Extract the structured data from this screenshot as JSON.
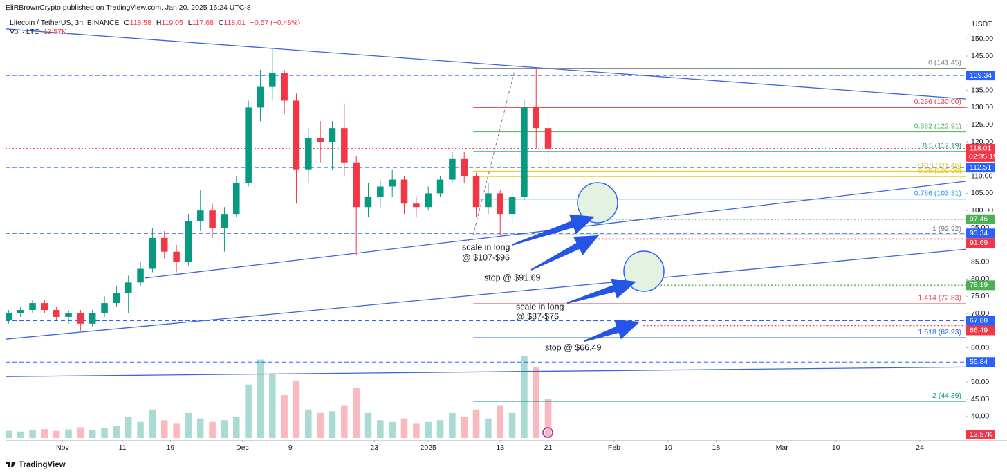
{
  "header": {
    "publisher": "EliRBrownCrypto published on TradingView.com, Jan 20, 2025 16:24 UTC-8",
    "symbol": "Litecoin / TetherUS, 3h, BINANCE",
    "ohlc": [
      [
        "O",
        "118.58"
      ],
      [
        "H",
        "119.05"
      ],
      [
        "L",
        "117.68"
      ],
      [
        "C",
        "118.01"
      ]
    ],
    "change": "−0.57 (−0.48%)",
    "volume_label": "Vol · LTC",
    "volume_value": "13.57K"
  },
  "chart_data": {
    "type": "candlestick",
    "x": [
      -9,
      -7,
      -5,
      -3,
      -1,
      1,
      3,
      5,
      7,
      9,
      11,
      13,
      15,
      17,
      19,
      21,
      23,
      25,
      27,
      29,
      31,
      33,
      35,
      37,
      39,
      41,
      43,
      45,
      47,
      49,
      51,
      53,
      55,
      57,
      59,
      61,
      63,
      65,
      67,
      69,
      71,
      73,
      75,
      77,
      79,
      81
    ],
    "open": [
      68,
      70,
      71,
      73,
      71,
      69,
      70,
      67,
      70,
      73,
      76,
      79,
      83,
      92,
      88,
      85,
      97,
      100,
      95,
      99,
      108,
      130,
      136,
      140,
      132,
      112,
      121,
      120,
      124,
      114,
      101,
      104,
      107,
      109,
      102,
      101,
      105,
      109,
      115,
      110,
      101,
      105,
      99,
      104,
      130,
      124
    ],
    "high": [
      71,
      72,
      74,
      74,
      72,
      71,
      71,
      71,
      75,
      78,
      81,
      85,
      95,
      94,
      90,
      99,
      106,
      102,
      101,
      110,
      132,
      141,
      147,
      141,
      134,
      124,
      126,
      126,
      131,
      116,
      108,
      109,
      112,
      110,
      104,
      107,
      110,
      117,
      117,
      111,
      108,
      106,
      106,
      132,
      141.45,
      127
    ],
    "low": [
      67,
      69,
      70,
      70,
      68,
      67,
      65,
      66,
      69,
      72,
      70,
      78,
      82,
      86,
      82,
      84,
      94,
      92,
      88,
      98,
      107,
      126,
      132,
      128,
      102,
      108,
      114,
      112,
      110,
      87,
      98,
      101,
      104,
      99,
      98,
      100,
      104,
      108,
      108,
      98,
      99,
      93,
      96,
      103,
      118,
      112
    ],
    "close": [
      70,
      71,
      73,
      71,
      69,
      70,
      67,
      70,
      73,
      76,
      79,
      83,
      92,
      88,
      85,
      97,
      100,
      95,
      99,
      108,
      130,
      136,
      140,
      132,
      112,
      121,
      120,
      124,
      114,
      101,
      104,
      107,
      109,
      102,
      101,
      105,
      109,
      115,
      110,
      101,
      105,
      99,
      104,
      130,
      124,
      118.01
    ],
    "volume": [
      20,
      18,
      22,
      25,
      20,
      24,
      30,
      22,
      28,
      35,
      60,
      45,
      80,
      50,
      40,
      70,
      55,
      45,
      50,
      60,
      150,
      220,
      180,
      120,
      160,
      80,
      70,
      75,
      90,
      140,
      70,
      50,
      45,
      55,
      40,
      45,
      50,
      70,
      60,
      80,
      55,
      90,
      70,
      230,
      200,
      110
    ],
    "volume_ylim": [
      0,
      320
    ],
    "volume_tag": "13.57K",
    "up_color": "#089981",
    "down_color": "#f23645",
    "currency": "USDT",
    "xlim": [
      -9.5,
      150.6
    ],
    "xticks": [
      {
        "value": 0,
        "label": "Nov"
      },
      {
        "value": 10,
        "label": "11"
      },
      {
        "value": 18,
        "label": "19"
      },
      {
        "value": 30,
        "label": "Dec"
      },
      {
        "value": 38,
        "label": "9"
      },
      {
        "value": 52,
        "label": "23"
      },
      {
        "value": 61,
        "label": "2025"
      },
      {
        "value": 73,
        "label": "13"
      },
      {
        "value": 81,
        "label": "21"
      },
      {
        "value": 92,
        "label": "Feb"
      },
      {
        "value": 101,
        "label": "10"
      },
      {
        "value": 109,
        "label": "18"
      },
      {
        "value": 120,
        "label": "Mar"
      },
      {
        "value": 129,
        "label": "10"
      },
      {
        "value": 143,
        "label": "24"
      }
    ],
    "ylim": [
      33.3,
      157.3
    ],
    "yticks": [
      {
        "value": 150,
        "label": "150.00"
      },
      {
        "value": 145,
        "label": "145.00"
      },
      {
        "value": 135,
        "label": "135.00"
      },
      {
        "value": 130,
        "label": "130.00"
      },
      {
        "value": 125,
        "label": "125.00"
      },
      {
        "value": 120,
        "label": "120.00"
      },
      {
        "value": 110,
        "label": "110.00"
      },
      {
        "value": 105,
        "label": "105.00"
      },
      {
        "value": 100,
        "label": "100.00"
      },
      {
        "value": 95,
        "label": "95.00"
      },
      {
        "value": 85,
        "label": "85.00"
      },
      {
        "value": 80,
        "label": "80.00"
      },
      {
        "value": 75,
        "label": "75.00"
      },
      {
        "value": 70,
        "label": "70.00"
      },
      {
        "value": 60,
        "label": "60.00"
      },
      {
        "value": 50,
        "label": "50.00"
      },
      {
        "value": 45,
        "label": "45.00"
      },
      {
        "value": 40,
        "label": "40.00"
      }
    ],
    "price_lines": [
      {
        "value": 139.34,
        "color": "#2962ff",
        "style": "dashed"
      },
      {
        "value": 118.01,
        "color": "#f23645",
        "style": "dotted",
        "countdown": "02:35:19"
      },
      {
        "value": 112.51,
        "color": "#2962ff",
        "style": "dashed"
      },
      {
        "value": 97.46,
        "color": "#4caf50",
        "style": "dotted",
        "start": 88.2
      },
      {
        "value": 93.34,
        "color": "#2962ff",
        "style": "dashed"
      },
      {
        "value": 91.69,
        "color": "#f23645",
        "style": "dotted",
        "start": 88.8
      },
      {
        "value": 78.19,
        "color": "#4caf50",
        "style": "dotted",
        "start": 96.3
      },
      {
        "value": 67.88,
        "color": "#2962ff",
        "style": "dashed"
      },
      {
        "value": 66.49,
        "color": "#f23645",
        "style": "dotted",
        "start": 96.9
      },
      {
        "value": 55.84,
        "color": "#2962ff",
        "style": "dashed"
      }
    ],
    "fib": {
      "start": 68.5,
      "end": 75.5,
      "levels": [
        {
          "label": "0 (141.45)",
          "value": 141.45,
          "color": "#787b86"
        },
        {
          "label": "0.236 (130.00)",
          "value": 130.0,
          "color": "#f23645"
        },
        {
          "label": "0.382 (122.91)",
          "value": 122.91,
          "color": "#4caf50"
        },
        {
          "label": "0.5 (117.19)",
          "value": 117.19,
          "color": "#089981"
        },
        {
          "label": "0.618 (111.46)",
          "value": 111.46,
          "color": "#e5c400"
        },
        {
          "label": "0.65 (109.90)",
          "value": 109.9,
          "color": "#e5c400"
        },
        {
          "label": "0.786 (103.31)",
          "value": 103.31,
          "color": "#2196f3"
        },
        {
          "label": "1 (92.92)",
          "value": 92.92,
          "color": "#787b86"
        },
        {
          "label": "1.414 (72.83)",
          "value": 72.83,
          "color": "#f23645"
        },
        {
          "label": "1.618 (62.93)",
          "value": 62.93,
          "color": "#2962ff"
        },
        {
          "label": "2 (44.39)",
          "value": 44.39,
          "color": "#089981"
        }
      ]
    },
    "trendlines": [
      {
        "x": [
          -9.5,
          150.6
        ],
        "y": [
          152.9,
          132.5
        ],
        "color": "#3d64d8"
      },
      {
        "x": [
          13.8,
          150.6
        ],
        "y": [
          80.3,
          108.5
        ],
        "color": "#3d64d8"
      },
      {
        "x": [
          -9.5,
          150.6
        ],
        "y": [
          62.5,
          88.7
        ],
        "color": "#3d64d8"
      },
      {
        "x": [
          -9.5,
          150.6
        ],
        "y": [
          51.6,
          54.4
        ],
        "color": "#3d64d8"
      }
    ],
    "annotations": [
      {
        "lines": [
          "scale in long",
          "@ $107-$96"
        ]
      },
      {
        "lines": [
          "stop @ $91.69"
        ]
      },
      {
        "lines": [
          "scale in long",
          "@ $87-$76"
        ]
      },
      {
        "lines": [
          "stop @ $66.49"
        ]
      }
    ]
  },
  "footer": {
    "brand": "TradingView"
  }
}
